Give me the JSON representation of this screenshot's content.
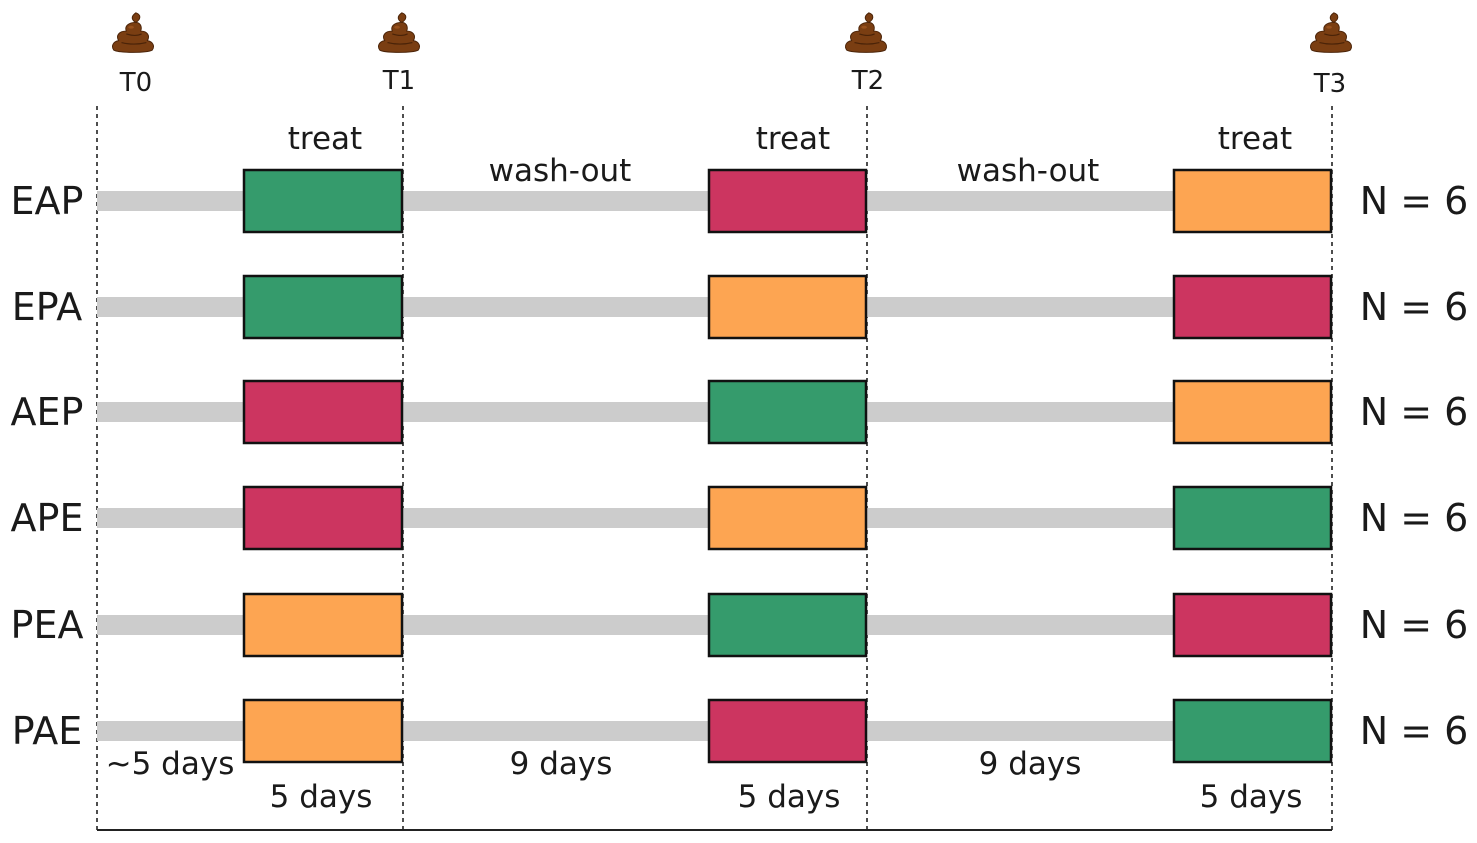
{
  "colors": {
    "E": "#359b6c",
    "A": "#cc3560",
    "P": "#fda552",
    "track": "#cccccc",
    "stool": "#7a3e12"
  },
  "timepoints": [
    {
      "label": "T0",
      "icon": "stool-icon"
    },
    {
      "label": "T1",
      "icon": "stool-icon"
    },
    {
      "label": "T2",
      "icon": "stool-icon"
    },
    {
      "label": "T3",
      "icon": "stool-icon"
    }
  ],
  "phases": {
    "treat": "treat",
    "washout": "wash-out"
  },
  "durations": {
    "baseline": "~5 days",
    "treat": "5 days",
    "washout": "9 days"
  },
  "groups": [
    {
      "name": "EAP",
      "sequence": [
        "E",
        "A",
        "P"
      ],
      "n": "N = 6"
    },
    {
      "name": "EPA",
      "sequence": [
        "E",
        "P",
        "A"
      ],
      "n": "N = 6"
    },
    {
      "name": "AEP",
      "sequence": [
        "A",
        "E",
        "P"
      ],
      "n": "N = 6"
    },
    {
      "name": "APE",
      "sequence": [
        "A",
        "P",
        "E"
      ],
      "n": "N = 6"
    },
    {
      "name": "PEA",
      "sequence": [
        "P",
        "E",
        "A"
      ],
      "n": "N = 6"
    },
    {
      "name": "PAE",
      "sequence": [
        "P",
        "A",
        "E"
      ],
      "n": "N = 6"
    }
  ]
}
